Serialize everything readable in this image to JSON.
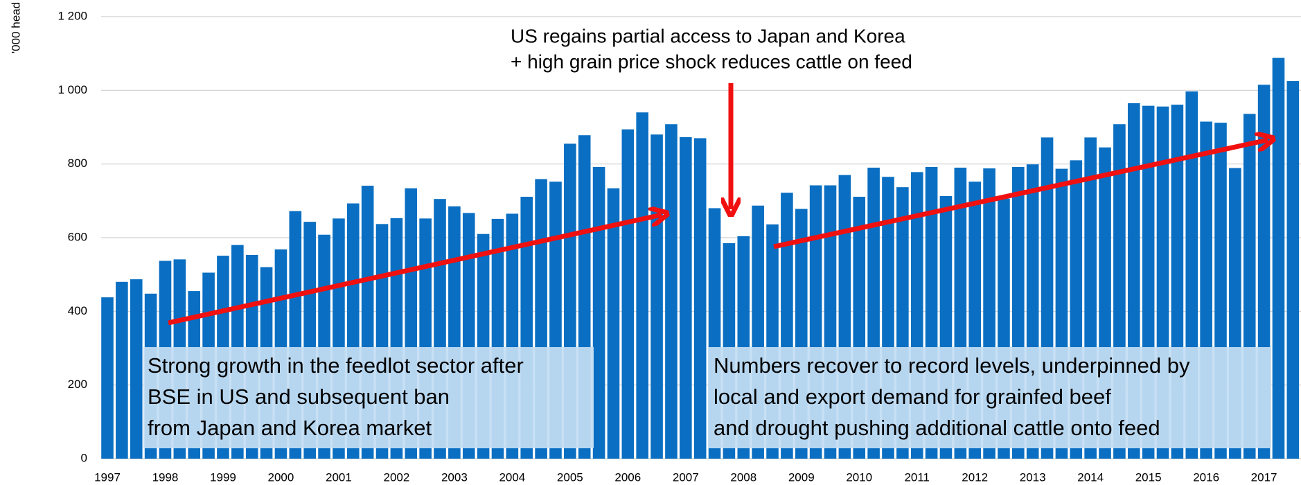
{
  "chart_data": {
    "type": "bar",
    "y_label": "'000 head",
    "categories": [
      "1997",
      null,
      null,
      null,
      "1998",
      null,
      null,
      null,
      "1999",
      null,
      null,
      null,
      "2000",
      null,
      null,
      null,
      "2001",
      null,
      null,
      null,
      "2002",
      null,
      null,
      null,
      "2003",
      null,
      null,
      null,
      "2004",
      null,
      null,
      null,
      "2005",
      null,
      null,
      null,
      "2006",
      null,
      null,
      null,
      "2007",
      null,
      null,
      null,
      "2008",
      null,
      null,
      null,
      "2009",
      null,
      null,
      null,
      "2010",
      null,
      null,
      null,
      "2011",
      null,
      null,
      null,
      "2012",
      null,
      null,
      null,
      "2013",
      null,
      null,
      null,
      "2014",
      null,
      null,
      null,
      "2015",
      null,
      null,
      null,
      "2016",
      null,
      null,
      null,
      "2017",
      null,
      null
    ],
    "values": [
      438,
      480,
      487,
      448,
      537,
      541,
      455,
      505,
      551,
      580,
      553,
      520,
      568,
      672,
      643,
      608,
      652,
      693,
      741,
      637,
      653,
      734,
      652,
      705,
      685,
      667,
      610,
      651,
      665,
      711,
      759,
      752,
      855,
      878,
      792,
      734,
      894,
      940,
      880,
      908,
      873,
      870,
      680,
      585,
      604,
      687,
      636,
      722,
      678,
      742,
      742,
      770,
      711,
      790,
      765,
      737,
      778,
      792,
      713,
      790,
      752,
      788,
      706,
      792,
      799,
      872,
      787,
      810,
      872,
      845,
      908,
      965,
      958,
      956,
      961,
      997,
      915,
      912,
      789,
      936,
      1015,
      1088,
      1025
    ],
    "color": "#0a6fc2",
    "ylim": [
      0,
      1200
    ],
    "yticks": [
      0,
      200,
      400,
      600,
      800,
      {
        "value": 1000,
        "label": "1 000"
      },
      {
        "value": 1200,
        "label": "1 200"
      }
    ],
    "grid": true,
    "annotations": [
      {
        "lines": [
          "US regains partial access to Japan and Korea",
          "+ high grain price shock reduces cattle on feed"
        ]
      },
      {
        "lines": [
          "Strong growth in the feedlot sector after",
          "BSE in US and subsequent ban",
          "from Japan and Korea market"
        ]
      },
      {
        "lines": [
          "Numbers recover to record levels, underpinned by",
          "local and export demand for grainfed beef",
          "and drought pushing additional cattle onto feed"
        ]
      }
    ]
  }
}
